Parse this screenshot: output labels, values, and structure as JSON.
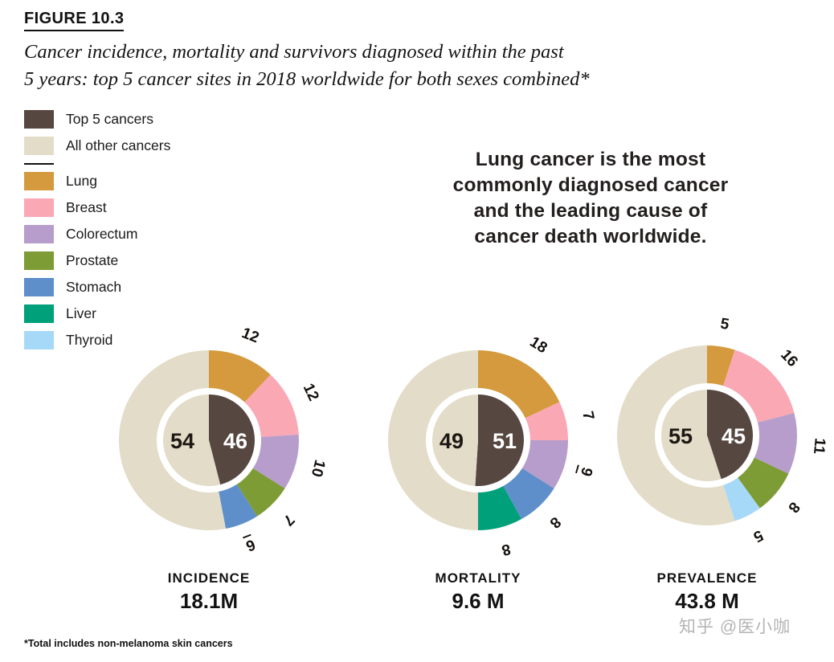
{
  "figure": {
    "label": "FIGURE 10.3",
    "title_lines": [
      "Cancer incidence, mortality and survivors diagnosed within the past",
      "5 years: top 5 cancer sites in 2018 worldwide for both sexes combined*"
    ],
    "callout_lines": [
      "Lung cancer is the most",
      "commonly diagnosed cancer",
      "and the leading cause of",
      "cancer death worldwide."
    ],
    "footnote": "*Total includes non-melanoma skin cancers",
    "watermark": "知乎 @医小咖"
  },
  "colors": {
    "top5": "#564741",
    "other": "#e2dcc8",
    "lung": "#d49a3d",
    "breast": "#f9a8b4",
    "colorectum": "#b79dcb",
    "prostate": "#7d9c35",
    "stomach": "#5e8fca",
    "liver": "#00a07a",
    "thyroid": "#a6d9f7"
  },
  "legend": [
    {
      "label": "Top 5 cancers",
      "color": "top5"
    },
    {
      "label": "All other cancers",
      "color": "other"
    },
    {
      "label": "Lung",
      "color": "lung",
      "divider_before": true
    },
    {
      "label": "Breast",
      "color": "breast"
    },
    {
      "label": "Colorectum",
      "color": "colorectum"
    },
    {
      "label": "Prostate",
      "color": "prostate"
    },
    {
      "label": "Stomach",
      "color": "stomach"
    },
    {
      "label": "Liver",
      "color": "liver"
    },
    {
      "label": "Thyroid",
      "color": "thyroid"
    }
  ],
  "chart_data": [
    {
      "type": "donut",
      "name": "INCIDENCE",
      "total": "18.1M",
      "inner": {
        "top5": 46,
        "other": 54
      },
      "segments": [
        {
          "site": "Lung",
          "color": "lung",
          "value": 12
        },
        {
          "site": "Breast",
          "color": "breast",
          "value": 12
        },
        {
          "site": "Colorectum",
          "color": "colorectum",
          "value": 10
        },
        {
          "site": "Prostate",
          "color": "prostate",
          "value": 7
        },
        {
          "site": "Stomach",
          "color": "stomach",
          "value": 6
        }
      ]
    },
    {
      "type": "donut",
      "name": "MORTALITY",
      "total": "9.6 M",
      "inner": {
        "top5": 51,
        "other": 49
      },
      "segments": [
        {
          "site": "Lung",
          "color": "lung",
          "value": 18
        },
        {
          "site": "Breast",
          "color": "breast",
          "value": 7
        },
        {
          "site": "Colorectum",
          "color": "colorectum",
          "value": 9
        },
        {
          "site": "Stomach",
          "color": "stomach",
          "value": 8
        },
        {
          "site": "Liver",
          "color": "liver",
          "value": 8
        }
      ]
    },
    {
      "type": "donut",
      "name": "PREVALENCE",
      "total": "43.8 M",
      "inner": {
        "top5": 45,
        "other": 55
      },
      "segments": [
        {
          "site": "Lung",
          "color": "lung",
          "value": 5
        },
        {
          "site": "Breast",
          "color": "breast",
          "value": 16
        },
        {
          "site": "Colorectum",
          "color": "colorectum",
          "value": 11
        },
        {
          "site": "Prostate",
          "color": "prostate",
          "value": 8
        },
        {
          "site": "Thyroid",
          "color": "thyroid",
          "value": 5
        }
      ]
    }
  ]
}
